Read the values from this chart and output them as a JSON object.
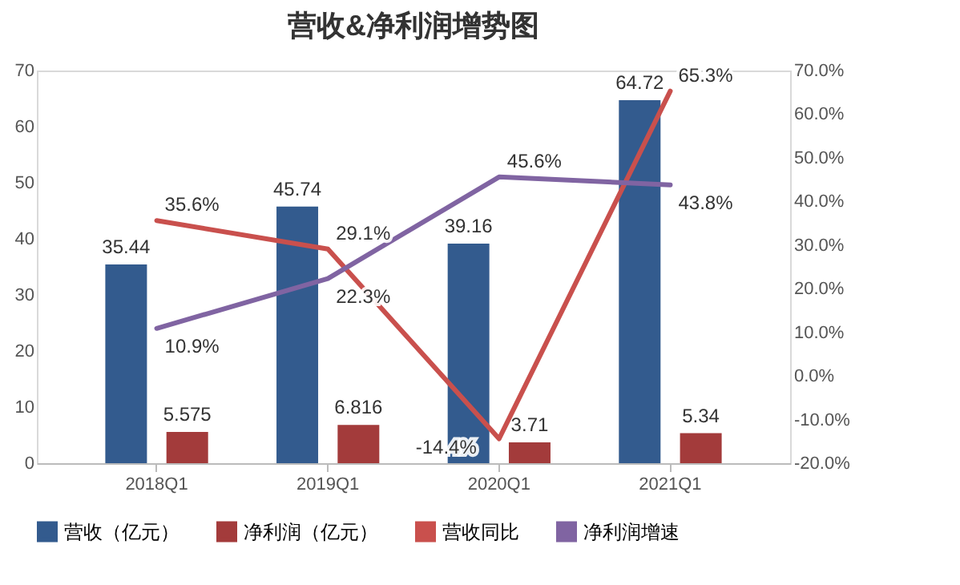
{
  "chart_data": {
    "type": "bar",
    "title": "营收&净利润增势图",
    "categories": [
      "2018Q1",
      "2019Q1",
      "2020Q1",
      "2021Q1"
    ],
    "series": [
      {
        "name": "营收（亿元）",
        "color": "#335b8e",
        "values": [
          35.44,
          45.74,
          39.16,
          64.72
        ],
        "value_labels": [
          "35.44",
          "45.74",
          "39.16",
          "64.72"
        ]
      },
      {
        "name": "净利润（亿元）",
        "color": "#a33b3b",
        "values": [
          5.575,
          6.816,
          3.71,
          5.34
        ],
        "value_labels": [
          "5.575",
          "6.816",
          "3.71",
          "5.34"
        ]
      },
      {
        "name": "营收同比",
        "type": "line",
        "axis": "y2",
        "color": "#c9504d",
        "values": [
          35.6,
          29.1,
          -14.4,
          65.3
        ],
        "value_labels": [
          "35.6%",
          "29.1%",
          "-14.4%",
          "65.3%"
        ]
      },
      {
        "name": "净利润增速",
        "type": "line",
        "axis": "y2",
        "color": "#8064a2",
        "values": [
          10.9,
          22.3,
          45.6,
          43.8
        ],
        "value_labels": [
          "10.9%",
          "22.3%",
          "45.6%",
          "43.8%"
        ]
      }
    ],
    "ylim": [
      0,
      70
    ],
    "yticks": [
      0,
      10,
      20,
      30,
      40,
      50,
      60,
      70
    ],
    "y2lim": [
      -20,
      70
    ],
    "y2ticks": [
      {
        "value": -20,
        "label": "-20.0%"
      },
      {
        "value": -10,
        "label": "-10.0%"
      },
      {
        "value": 0,
        "label": "0.0%"
      },
      {
        "value": 10,
        "label": "10.0%"
      },
      {
        "value": 20,
        "label": "20.0%"
      },
      {
        "value": 30,
        "label": "30.0%"
      },
      {
        "value": 40,
        "label": "40.0%"
      },
      {
        "value": 50,
        "label": "50.0%"
      },
      {
        "value": 60,
        "label": "60.0%"
      },
      {
        "value": 70,
        "label": "70.0%"
      }
    ],
    "legend": "bottom",
    "grid": false,
    "marker": "none",
    "line_style": "solid"
  }
}
